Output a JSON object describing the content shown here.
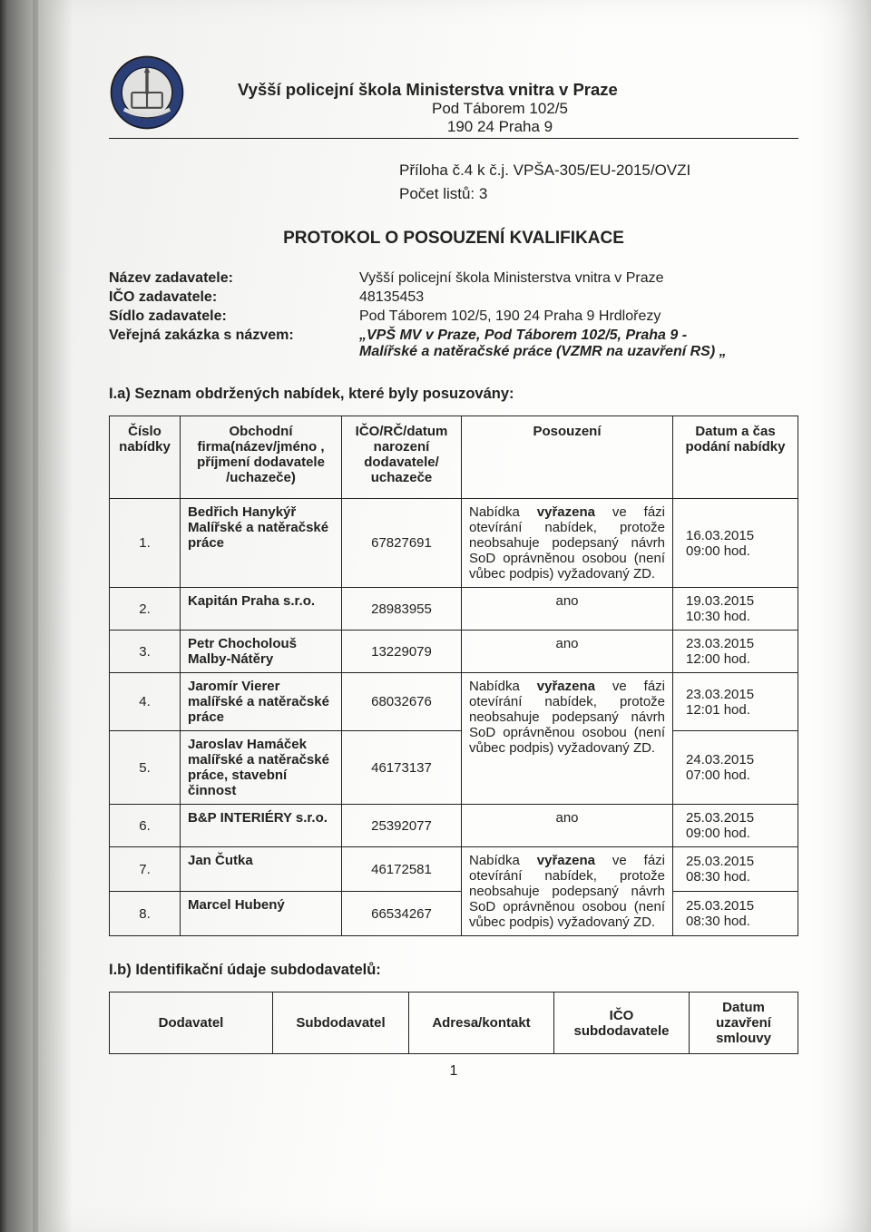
{
  "letterhead": {
    "org": "Vyšší policejní škola Ministerstva vnitra v Praze",
    "addr1": "Pod Táborem 102/5",
    "addr2": "190 24 Praha 9",
    "logo_ring_color": "#2a3e78",
    "logo_inner_color": "#e1e1df",
    "logo_stroke": "#1a1a1a"
  },
  "attachment": {
    "line1": "Příloha č.4 k č.j. VPŠA-305/EU-2015/OVZI",
    "line2": "Počet listů: 3"
  },
  "title": "PROTOKOL O POSOUZENÍ KVALIFIKACE",
  "meta": {
    "l1": "Název zadavatele:",
    "v1": "Vyšší policejní škola Ministerstva vnitra v Praze",
    "l2": "IČO zadavatele:",
    "v2": "48135453",
    "l3": "Sídlo zadavatele:",
    "v3": "Pod Táborem 102/5, 190 24 Praha 9 Hrdlořezy",
    "l4": "Veřejná zakázka s názvem:",
    "v4a": "„VPŠ MV v Praze, Pod Táborem 102/5, Praha 9 -",
    "v4b": "Malířské a natěračské práce (VZMR na uzavření RS) „"
  },
  "section_a": "I.a) Seznam obdržených nabídek, které byly posuzovány:",
  "table": {
    "head": {
      "c1": "Číslo nabídky",
      "c2": "Obchodní firma(název/jméno , příjmení dodavatele /uchazeče)",
      "c3": "IČO/RČ/datum narození dodavatele/ uchazeče",
      "c4": "Posouzení",
      "c5": "Datum a čas podání nabídky"
    },
    "rows": [
      {
        "n": "1.",
        "firm": "Bedřich Hanykýř Malířské a natěračské práce",
        "ico": "67827691",
        "pos": "Nabídka <b>vyřazena</b> ve fázi otevírání nabídek, protože neobsahuje podepsaný návrh SoD oprávněnou osobou (není vůbec podpis) vyžadovaný ZD.",
        "date": "16.03.2015\n09:00 hod."
      },
      {
        "n": "2.",
        "firm": "Kapitán Praha s.r.o.",
        "ico": "28983955",
        "pos": "ano",
        "pos_center": true,
        "date": "19.03.2015\n10:30 hod."
      },
      {
        "n": "3.",
        "firm": "Petr Chocholouš Malby-Nátěry",
        "ico": "13229079",
        "pos": "ano",
        "pos_center": true,
        "date": "23.03.2015\n12:00 hod."
      },
      {
        "n": "4.",
        "firm": "Jaromír Vierer malířské a natěračské práce",
        "ico": "68032676",
        "pos": "Nabídka <b>vyřazena</b> ve fázi otevírání nabídek, protože neobsahuje podepsaný návrh",
        "date": "23.03.2015\n12:01 hod.",
        "merge_pos_down": true
      },
      {
        "n": "5.",
        "firm": "Jaroslav Hamáček malířské a natěračské práce, stavební činnost",
        "ico": "46173137",
        "pos": "SoD oprávněnou osobou (není vůbec podpis) vyžadovaný ZD.",
        "date": "24.03.2015\n07:00 hod.",
        "merged_from_above": true
      },
      {
        "n": "6.",
        "firm": "B&P INTERIÉRY s.r.o.",
        "ico": "25392077",
        "pos": "ano",
        "pos_center": true,
        "date": "25.03.2015\n09:00 hod."
      },
      {
        "n": "7.",
        "firm": "Jan Čutka",
        "ico": "46172581",
        "pos": "Nabídka <b>vyřazena</b> ve fázi otevírání nabídek, protože",
        "date": "25.03.2015\n08:30 hod.",
        "merge_pos_down": true
      },
      {
        "n": "8.",
        "firm": "Marcel Hubený",
        "ico": "66534267",
        "pos": "neobsahuje podepsaný návrh SoD oprávněnou osobou (není vůbec podpis) vyžadovaný ZD.",
        "date": "25.03.2015\n08:30 hod.",
        "merged_from_above": true
      }
    ]
  },
  "section_b": "I.b) Identifikační údaje subdodavatelů:",
  "subtable": {
    "h1": "Dodavatel",
    "h2": "Subdodavatel",
    "h3": "Adresa/kontakt",
    "h4": "IČO subdodavatele",
    "h5": "Datum uzavření smlouvy"
  },
  "page_number": "1",
  "colors": {
    "text": "#222222",
    "border": "#222222",
    "bg_light": "#fdfdfc",
    "bg_shadow": "#eeeeec"
  }
}
